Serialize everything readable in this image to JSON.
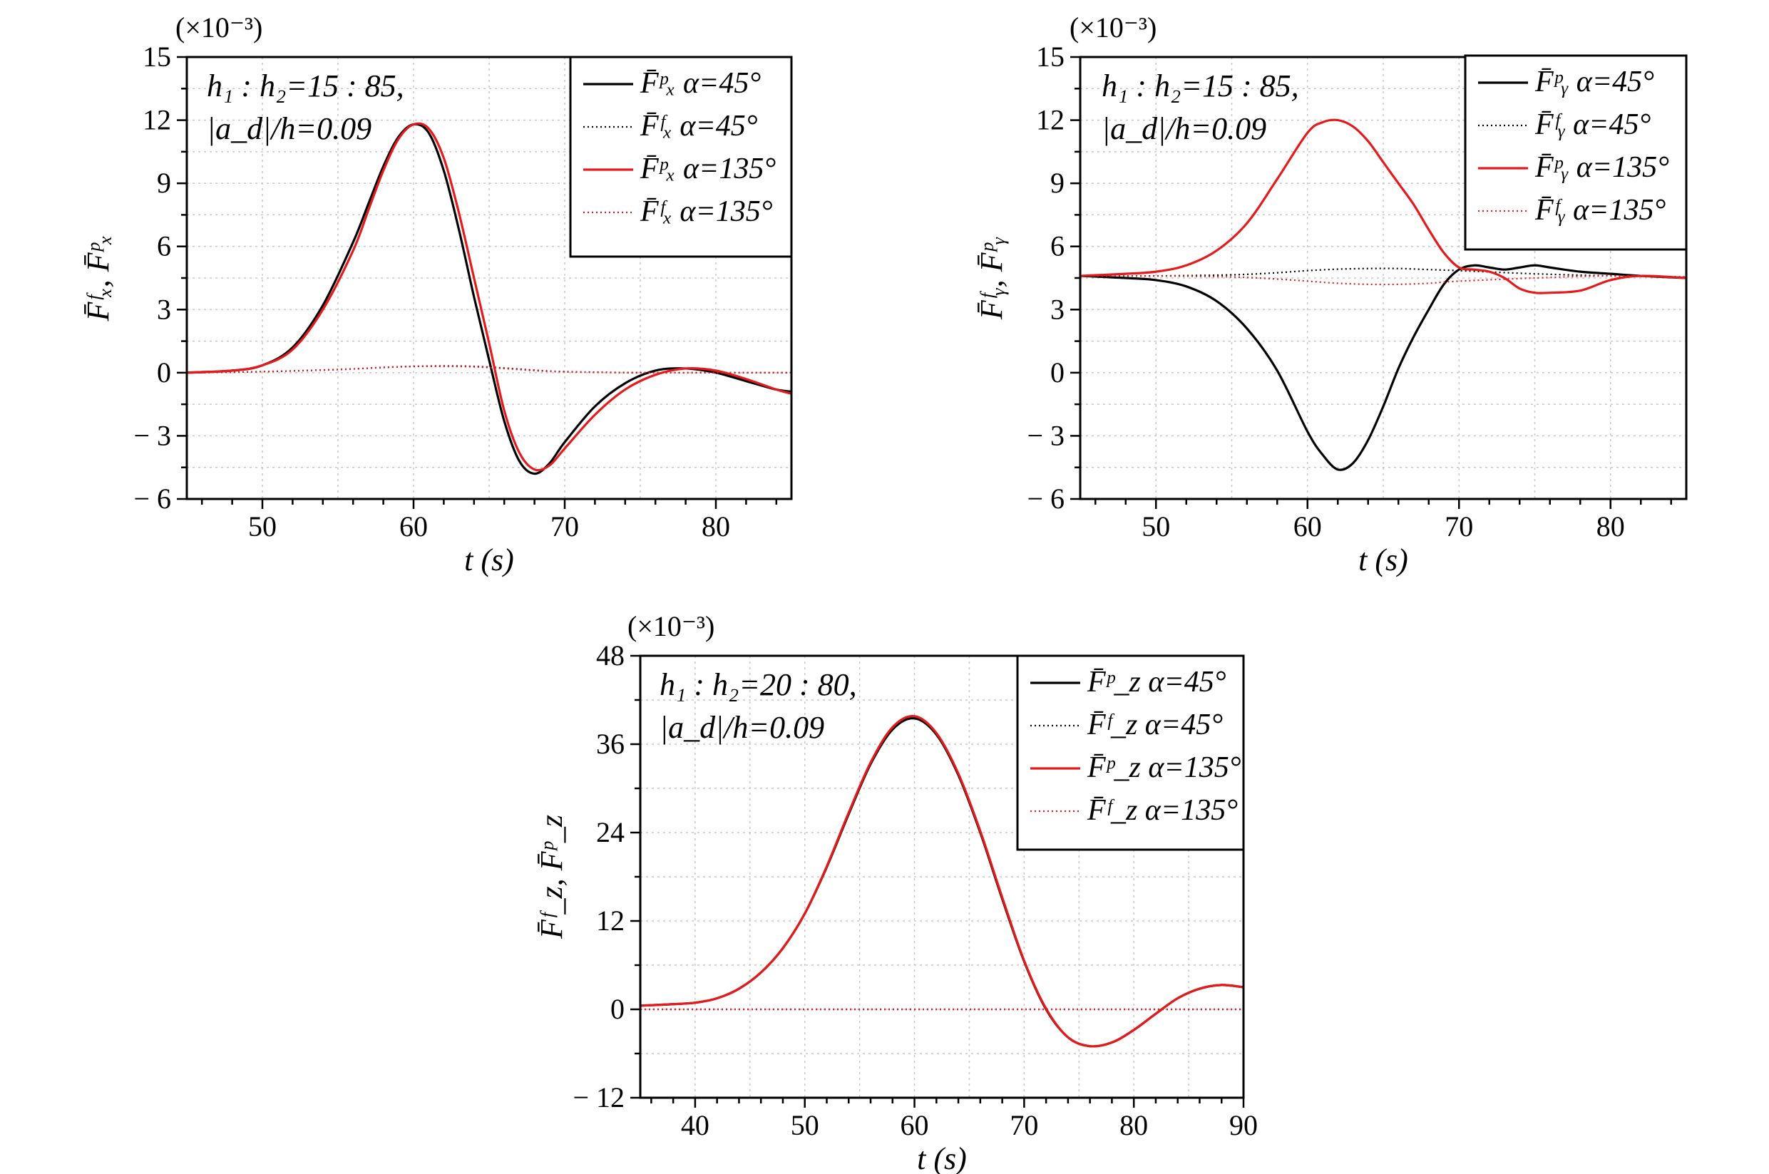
{
  "colors": {
    "black": "#000000",
    "red": "#e41a1c",
    "grid": "#c8c8c8"
  },
  "chart_data": [
    {
      "type": "line",
      "id": "fx",
      "multiplier": "(×10⁻³)",
      "ylabel": "F̄ᶠₓ, F̄ᵖₓ",
      "xlabel": "t (s)",
      "xlim": [
        45,
        85
      ],
      "ylim": [
        -6,
        15
      ],
      "xticks": [
        50,
        60,
        70,
        80
      ],
      "yticks": [
        -6,
        -3,
        0,
        3,
        6,
        9,
        12,
        15
      ],
      "ytick_labels": [
        "− 6",
        "− 3",
        "0",
        "3",
        "6",
        "9",
        "12",
        "15"
      ],
      "annotation": [
        "h₁ : h₂=15 : 85,",
        "|a_d|/h=0.09"
      ],
      "legend_position": "top-right",
      "series": [
        {
          "name": "F̄ᵖₓ α=45°",
          "color": "black",
          "style": "solid",
          "x": [
            45,
            48,
            50,
            52,
            54,
            56,
            57,
            58,
            59,
            60,
            61,
            62,
            63,
            64,
            65,
            66,
            67,
            68,
            69,
            70,
            72,
            74,
            76,
            78,
            80,
            82,
            84,
            85
          ],
          "y": [
            0,
            0.1,
            0.35,
            1.2,
            3.2,
            6.2,
            8.0,
            9.8,
            11.2,
            11.8,
            11.4,
            9.6,
            6.8,
            3.6,
            0.6,
            -2.3,
            -4.2,
            -4.8,
            -4.3,
            -3.3,
            -1.6,
            -0.5,
            0.1,
            0.2,
            0,
            -0.4,
            -0.8,
            -0.9
          ]
        },
        {
          "name": "F̄ᶠₓ α=45°",
          "color": "black",
          "style": "dotted",
          "x": [
            45,
            50,
            55,
            58,
            60,
            62,
            64,
            66,
            68,
            70,
            75,
            80,
            85
          ],
          "y": [
            0,
            0.05,
            0.15,
            0.25,
            0.3,
            0.32,
            0.3,
            0.22,
            0.12,
            0.05,
            0,
            0,
            0
          ]
        },
        {
          "name": "F̄ᵖₓ α=135°",
          "color": "red",
          "style": "solid",
          "x": [
            45,
            48,
            50,
            52,
            54,
            56,
            57,
            58,
            59,
            60,
            61,
            62,
            63,
            64,
            65,
            66,
            67,
            68,
            69,
            70,
            72,
            74,
            76,
            78,
            80,
            82,
            84,
            85
          ],
          "y": [
            0,
            0.1,
            0.35,
            1.1,
            3.0,
            5.8,
            7.7,
            9.6,
            11.1,
            11.8,
            11.6,
            10.2,
            7.6,
            4.5,
            1.4,
            -1.8,
            -3.8,
            -4.6,
            -4.4,
            -3.6,
            -2.0,
            -0.8,
            -0.1,
            0.2,
            0.1,
            -0.3,
            -0.8,
            -1.0
          ]
        },
        {
          "name": "F̄ᶠₓ α=135°",
          "color": "red",
          "style": "dotted",
          "x": [
            45,
            50,
            55,
            58,
            60,
            62,
            64,
            66,
            68,
            70,
            75,
            80,
            85
          ],
          "y": [
            0,
            0.05,
            0.15,
            0.25,
            0.3,
            0.3,
            0.28,
            0.2,
            0.1,
            0.04,
            0,
            0,
            0
          ]
        }
      ]
    },
    {
      "type": "line",
      "id": "fy",
      "multiplier": "(×10⁻³)",
      "ylabel": "F̄ᶠᵧ, F̄ᵖᵧ",
      "xlabel": "t (s)",
      "xlim": [
        45,
        85
      ],
      "ylim": [
        -6,
        15
      ],
      "xticks": [
        50,
        60,
        70,
        80
      ],
      "yticks": [
        -6,
        -3,
        0,
        3,
        6,
        9,
        12,
        15
      ],
      "ytick_labels": [
        "− 6",
        "− 3",
        "0",
        "3",
        "6",
        "9",
        "12",
        "15"
      ],
      "annotation": [
        "h₁ : h₂=15 : 85,",
        "|a_d|/h=0.09"
      ],
      "legend_position": "top-right",
      "series": [
        {
          "name": "F̄ᵖᵧ α=45°",
          "color": "black",
          "style": "solid",
          "x": [
            45,
            48,
            50,
            52,
            54,
            56,
            58,
            60,
            61,
            62,
            63,
            64,
            65,
            66,
            67,
            68,
            69,
            70,
            71,
            72,
            73,
            74,
            75,
            76,
            78,
            80,
            82,
            85
          ],
          "y": [
            4.6,
            4.5,
            4.4,
            4.1,
            3.4,
            2.1,
            0.1,
            -2.8,
            -3.9,
            -4.6,
            -4.3,
            -3.2,
            -1.6,
            0.2,
            1.7,
            3.0,
            4.2,
            4.9,
            5.1,
            5.0,
            4.9,
            5.0,
            5.1,
            5.0,
            4.8,
            4.7,
            4.6,
            4.5
          ]
        },
        {
          "name": "F̄ᶠᵧ α=45°",
          "color": "black",
          "style": "dotted",
          "x": [
            45,
            50,
            55,
            58,
            60,
            62,
            64,
            66,
            68,
            70,
            75,
            80,
            85
          ],
          "y": [
            4.6,
            4.6,
            4.65,
            4.75,
            4.85,
            4.92,
            4.95,
            4.95,
            4.9,
            4.85,
            4.7,
            4.6,
            4.55
          ]
        },
        {
          "name": "F̄ᵖᵧ α=135°",
          "color": "red",
          "style": "solid",
          "x": [
            45,
            48,
            50,
            52,
            54,
            56,
            58,
            60,
            61,
            62,
            63,
            64,
            65,
            66,
            67,
            68,
            69,
            70,
            71,
            72,
            73,
            74,
            75,
            76,
            78,
            80,
            82,
            85
          ],
          "y": [
            4.6,
            4.7,
            4.8,
            5.1,
            5.8,
            7.1,
            9.2,
            11.4,
            11.9,
            12.0,
            11.7,
            11.0,
            10.0,
            9.0,
            8.0,
            6.8,
            5.7,
            5.0,
            4.9,
            4.8,
            4.5,
            4.0,
            3.8,
            3.8,
            3.9,
            4.4,
            4.6,
            4.5
          ]
        },
        {
          "name": "F̄ᶠᵧ α=135°",
          "color": "red",
          "style": "dotted",
          "x": [
            45,
            50,
            55,
            58,
            60,
            62,
            64,
            66,
            68,
            70,
            75,
            80,
            85
          ],
          "y": [
            4.6,
            4.6,
            4.55,
            4.45,
            4.35,
            4.25,
            4.2,
            4.2,
            4.25,
            4.35,
            4.5,
            4.6,
            4.55
          ]
        }
      ]
    },
    {
      "type": "line",
      "id": "fz",
      "multiplier": "(×10⁻³)",
      "ylabel": "F̄ᶠ_z, F̄ᵖ_z",
      "xlabel": "t (s)",
      "xlim": [
        35,
        90
      ],
      "ylim": [
        -12,
        48
      ],
      "xticks": [
        40,
        50,
        60,
        70,
        80,
        90
      ],
      "yticks": [
        -12,
        0,
        12,
        24,
        36,
        48
      ],
      "ytick_labels": [
        "− 12",
        "0",
        "12",
        "24",
        "36",
        "48"
      ],
      "annotation": [
        "h₁ : h₂=20 : 80,",
        "|a_d|/h=0.09"
      ],
      "legend_position": "top-right",
      "series": [
        {
          "name": "F̄ᵖ_z α=45°",
          "color": "black",
          "style": "solid",
          "x": [
            35,
            38,
            40,
            42,
            44,
            46,
            48,
            50,
            52,
            54,
            56,
            58,
            60,
            62,
            64,
            66,
            68,
            70,
            72,
            74,
            76,
            78,
            80,
            82,
            84,
            86,
            88,
            90
          ],
          "y": [
            0.5,
            0.7,
            0.9,
            1.5,
            2.8,
            5.0,
            8.3,
            13.0,
            19.3,
            26.5,
            33.3,
            38.0,
            39.5,
            37.3,
            31.8,
            24.0,
            15.0,
            6.5,
            0.0,
            -3.8,
            -5.0,
            -4.5,
            -2.8,
            -0.6,
            1.5,
            2.8,
            3.3,
            3.0
          ]
        },
        {
          "name": "F̄ᶠ_z α=45°",
          "color": "black",
          "style": "dotted",
          "x": [
            35,
            50,
            60,
            70,
            80,
            90
          ],
          "y": [
            0,
            0,
            0,
            0,
            0,
            0
          ]
        },
        {
          "name": "F̄ᵖ_z α=135°",
          "color": "red",
          "style": "solid",
          "x": [
            35,
            38,
            40,
            42,
            44,
            46,
            48,
            50,
            52,
            54,
            56,
            58,
            60,
            62,
            64,
            66,
            68,
            70,
            72,
            74,
            76,
            78,
            80,
            82,
            84,
            86,
            88,
            90
          ],
          "y": [
            0.5,
            0.7,
            0.9,
            1.5,
            2.8,
            5.0,
            8.3,
            13.0,
            19.4,
            26.7,
            33.5,
            38.3,
            39.8,
            37.5,
            32.0,
            24.2,
            15.2,
            6.6,
            0.1,
            -3.8,
            -5.0,
            -4.5,
            -2.8,
            -0.6,
            1.5,
            2.8,
            3.3,
            3.0
          ]
        },
        {
          "name": "F̄ᶠ_z α=135°",
          "color": "red",
          "style": "dotted",
          "x": [
            35,
            50,
            60,
            70,
            80,
            90
          ],
          "y": [
            0,
            0,
            0,
            0,
            0,
            0
          ]
        }
      ]
    }
  ]
}
